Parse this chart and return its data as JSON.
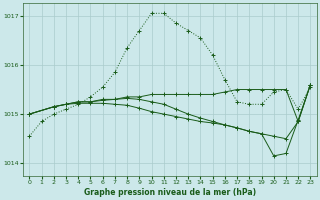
{
  "title": "Graphe pression niveau de la mer (hPa)",
  "bg_color": "#cce8ea",
  "grid_color": "#aacccc",
  "line_color": "#1a5c1a",
  "xlim": [
    -0.5,
    23.5
  ],
  "ylim": [
    1013.75,
    1017.25
  ],
  "yticks": [
    1014,
    1015,
    1016,
    1017
  ],
  "xticks": [
    0,
    1,
    2,
    3,
    4,
    5,
    6,
    7,
    8,
    9,
    10,
    11,
    12,
    13,
    14,
    15,
    16,
    17,
    18,
    19,
    20,
    21,
    22,
    23
  ],
  "s1_x": [
    0,
    1,
    2,
    3,
    4,
    5,
    6,
    7,
    8,
    9,
    10,
    11,
    12,
    13,
    14,
    15,
    16,
    17,
    18,
    19,
    20,
    21,
    22,
    23
  ],
  "s1_y": [
    1014.55,
    1014.85,
    1015.0,
    1015.1,
    1015.2,
    1015.35,
    1015.55,
    1015.85,
    1016.35,
    1016.7,
    1017.05,
    1017.05,
    1016.85,
    1016.7,
    1016.55,
    1016.2,
    1015.7,
    1015.25,
    1015.2,
    1015.2,
    1015.45,
    1015.5,
    1015.1,
    1015.55
  ],
  "s2_x": [
    0,
    2,
    3,
    4,
    5,
    6,
    7,
    8,
    9,
    10,
    11,
    12,
    13,
    14,
    15,
    16,
    17,
    18,
    19,
    20,
    21,
    22,
    23
  ],
  "s2_y": [
    1015.0,
    1015.15,
    1015.2,
    1015.25,
    1015.25,
    1015.3,
    1015.3,
    1015.35,
    1015.35,
    1015.4,
    1015.4,
    1015.4,
    1015.4,
    1015.4,
    1015.4,
    1015.45,
    1015.5,
    1015.5,
    1015.5,
    1015.5,
    1015.5,
    1014.85,
    1015.6
  ],
  "s3_x": [
    0,
    2,
    3,
    4,
    5,
    6,
    7,
    8,
    9,
    10,
    11,
    12,
    13,
    14,
    15,
    16,
    17,
    18,
    19,
    20,
    21,
    22,
    23
  ],
  "s3_y": [
    1015.0,
    1015.15,
    1015.2,
    1015.22,
    1015.22,
    1015.22,
    1015.2,
    1015.18,
    1015.12,
    1015.05,
    1015.0,
    1014.95,
    1014.9,
    1014.85,
    1014.82,
    1014.78,
    1014.72,
    1014.65,
    1014.6,
    1014.55,
    1014.5,
    1014.85,
    1015.6
  ],
  "s4_x": [
    0,
    2,
    3,
    4,
    5,
    6,
    7,
    8,
    9,
    10,
    11,
    12,
    13,
    14,
    15,
    16,
    17,
    18,
    19,
    20,
    21,
    22,
    23
  ],
  "s4_y": [
    1015.0,
    1015.15,
    1015.2,
    1015.25,
    1015.25,
    1015.28,
    1015.3,
    1015.32,
    1015.3,
    1015.25,
    1015.2,
    1015.1,
    1015.0,
    1014.92,
    1014.85,
    1014.78,
    1014.72,
    1014.65,
    1014.6,
    1014.15,
    1014.2,
    1014.88,
    1015.6
  ]
}
